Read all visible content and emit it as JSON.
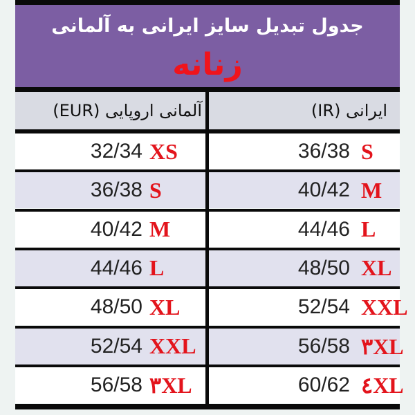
{
  "header": {
    "title": "جدول تبدیل سایز ایرانی به آلمانی",
    "subtitle": "زنانه"
  },
  "columns": {
    "german": "آلمانی اروپایی (EUR)",
    "iranian": "ایرانی (IR)"
  },
  "rows": [
    {
      "eur_num": "32/34",
      "eur_size": "XS",
      "ir_num": "36/38",
      "ir_size": "S"
    },
    {
      "eur_num": "36/38",
      "eur_size": "S",
      "ir_num": "40/42",
      "ir_size": "M"
    },
    {
      "eur_num": "40/42",
      "eur_size": "M",
      "ir_num": "44/46",
      "ir_size": "L"
    },
    {
      "eur_num": "44/46",
      "eur_size": "L",
      "ir_num": "48/50",
      "ir_size": "XL"
    },
    {
      "eur_num": "48/50",
      "eur_size": "XL",
      "ir_num": "52/54",
      "ir_size": "XXL"
    },
    {
      "eur_num": "52/54",
      "eur_size": "XXL",
      "ir_num": "56/58",
      "ir_size": "۳XL"
    },
    {
      "eur_num": "56/58",
      "eur_size": "۳XL",
      "ir_num": "60/62",
      "ir_size": "٤XL"
    }
  ],
  "colors": {
    "banner": "#7c5ea3",
    "accent_red": "#e3141c",
    "alt_row": "#e1e1ee"
  }
}
